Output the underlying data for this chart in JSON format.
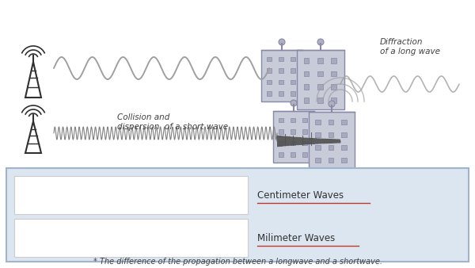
{
  "bg_color": "#ffffff",
  "panel_bg": "#dce6f1",
  "panel_border": "#a0b4cc",
  "wave_color_long": "#a0a0a0",
  "wave_color_short": "#808080",
  "wave_color_diffract": "#a0a0a0",
  "wave_color_scatter": "#505050",
  "text_color": "#404040",
  "underline_color": "#c0392b",
  "title_text": "* The difference of the propagation between a longwave and a shortwave.",
  "label_centimeter": "Centimeter Waves",
  "label_millimeter": "Milimeter Waves",
  "label_diffraction": "Diffraction\nof a long wave",
  "label_collision": "Collision and\ndispersion  of a short wave",
  "figsize": [
    6.0,
    3.38
  ],
  "dpi": 100
}
